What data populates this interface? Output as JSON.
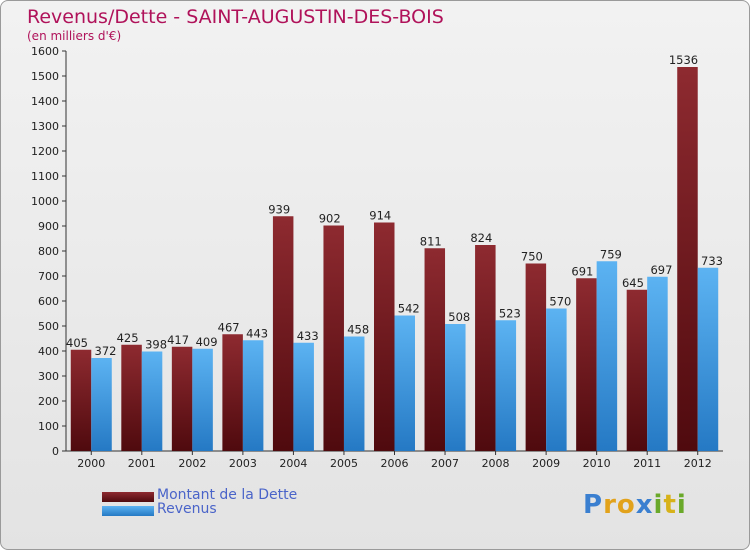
{
  "header": {
    "title": "Revenus/Dette - SAINT-AUGUSTIN-DES-BOIS",
    "subtitle": "(en milliers d'€)"
  },
  "colors": {
    "title": "#b0125a",
    "dette": "#7a1a20",
    "revenus": "#3d9be6",
    "legend_text": "#4a64c9"
  },
  "chart_data": {
    "type": "bar",
    "categories": [
      "2000",
      "2001",
      "2002",
      "2003",
      "2004",
      "2005",
      "2006",
      "2007",
      "2008",
      "2009",
      "2010",
      "2011",
      "2012"
    ],
    "series": [
      {
        "name": "Montant de la Dette",
        "values": [
          405,
          425,
          417,
          467,
          939,
          902,
          914,
          811,
          824,
          750,
          691,
          645,
          1536
        ]
      },
      {
        "name": "Revenus",
        "values": [
          372,
          398,
          409,
          443,
          433,
          458,
          542,
          508,
          523,
          570,
          759,
          697,
          733
        ]
      }
    ],
    "ylim": [
      0,
      1600
    ],
    "yticks": [
      0,
      100,
      200,
      300,
      400,
      500,
      600,
      700,
      800,
      900,
      1000,
      1100,
      1200,
      1300,
      1400,
      1500,
      1600
    ],
    "grid": false,
    "legend_position": "bottom-left",
    "title": "Revenus/Dette - SAINT-AUGUSTIN-DES-BOIS",
    "xlabel": "",
    "ylabel": "(en milliers d'€)"
  },
  "legend": {
    "items": [
      {
        "label": "Montant de la Dette"
      },
      {
        "label": "Revenus"
      }
    ]
  },
  "watermark": {
    "letters": [
      "P",
      "r",
      "o",
      "x",
      "i",
      "t",
      "i"
    ],
    "colors": [
      "#3a7fd0",
      "#e2a21b",
      "#e2a21b",
      "#3a7fd0",
      "#6aa92a",
      "#d7b21a",
      "#6aa92a"
    ]
  }
}
